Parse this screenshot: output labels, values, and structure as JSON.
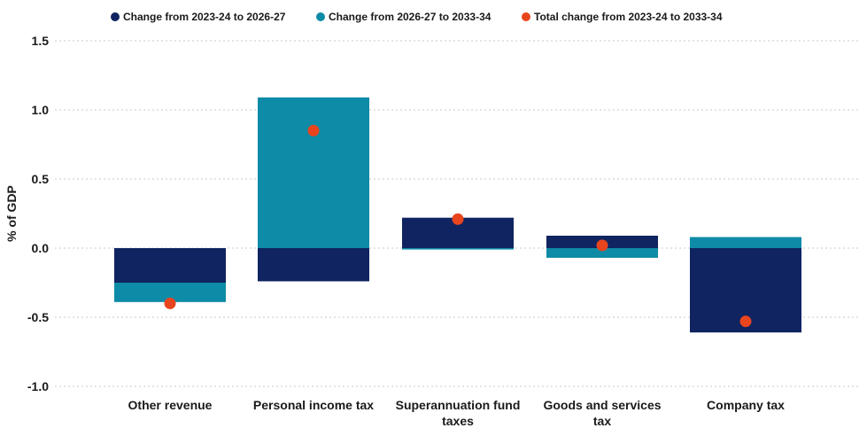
{
  "colors": {
    "series1": "#0f2460",
    "series2": "#0e8ba6",
    "total": "#e8451e"
  },
  "chart_data": {
    "type": "bar",
    "stacked": true,
    "categories": [
      "Other revenue",
      "Personal income tax",
      "Superannuation fund taxes",
      "Goods and services tax",
      "Company tax"
    ],
    "category_lines": [
      [
        "Other revenue"
      ],
      [
        "Personal income tax"
      ],
      [
        "Superannuation fund",
        "taxes"
      ],
      [
        "Goods and services",
        "tax"
      ],
      [
        "Company tax"
      ]
    ],
    "series": [
      {
        "name": "Change from 2023-24 to 2026-27",
        "values": [
          -0.25,
          -0.24,
          0.22,
          0.09,
          -0.61
        ]
      },
      {
        "name": "Change from 2026-27 to 2033-34",
        "values": [
          -0.14,
          1.09,
          -0.01,
          -0.07,
          0.08
        ]
      }
    ],
    "markers": {
      "name": "Total change from 2023-24 to 2033-34",
      "values": [
        -0.4,
        0.85,
        0.21,
        0.02,
        -0.53
      ]
    },
    "ylabel": "% of GDP",
    "ylim": [
      -1.0,
      1.5
    ],
    "yticks": [
      "1.5",
      "1.0",
      "0.5",
      "0.0",
      "-0.5",
      "-1.0"
    ],
    "ytick_values": [
      1.5,
      1.0,
      0.5,
      0.0,
      -0.5,
      -1.0
    ],
    "grid": true,
    "legend_position": "top"
  }
}
